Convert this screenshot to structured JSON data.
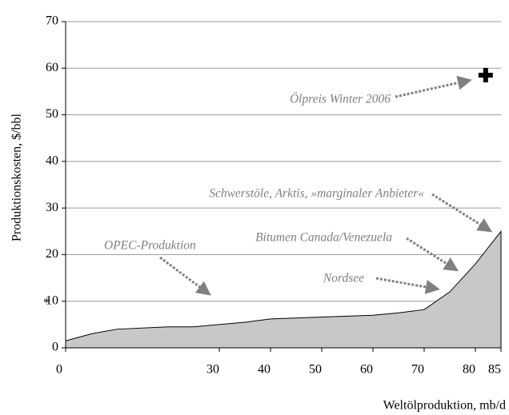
{
  "chart_data": {
    "type": "area",
    "x": [
      0,
      5,
      10,
      20,
      25,
      35,
      40,
      50,
      60,
      65,
      70,
      75,
      80,
      85
    ],
    "values": [
      1.5,
      3,
      4,
      4.5,
      4.5,
      5.5,
      6.2,
      6.6,
      7.0,
      7.5,
      8.2,
      12,
      18,
      25
    ],
    "color": "#c8c8c8",
    "xlim": [
      0,
      85
    ],
    "xticks": [
      0,
      30,
      40,
      50,
      60,
      70,
      80,
      85
    ],
    "ylim": [
      0,
      70
    ],
    "yticks": [
      0,
      10,
      20,
      30,
      40,
      50,
      60,
      70
    ],
    "grid": true,
    "xlabel": "Weltölproduktion, mb/d",
    "ylabel": "Produktionskosten, $/bbl",
    "marker": {
      "x": 82,
      "y": 58.5
    },
    "annotations": [
      "Ölpreis Winter 2006",
      "Schwerstöle, Arktis, »marginaler Anbieter«",
      "Bitumen Canada/Venezuela",
      "Nordsee",
      "OPEC-Produktion",
      "*"
    ]
  }
}
